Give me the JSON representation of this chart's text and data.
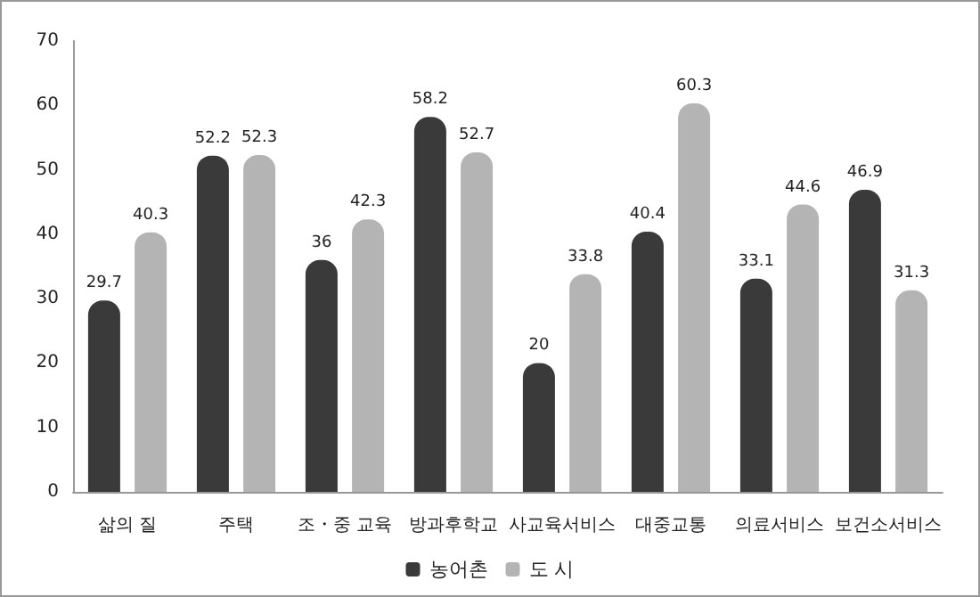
{
  "chart_data": {
    "type": "bar",
    "categories": [
      "삶의 질",
      "주택",
      "조・중 교육",
      "방과후학교",
      "사교육서비스",
      "대중교통",
      "의료서비스",
      "보건소서비스"
    ],
    "series": [
      {
        "name": "농어촌",
        "color": "#3a3a3a",
        "values": [
          29.7,
          52.2,
          36,
          58.2,
          20,
          40.4,
          33.1,
          46.9
        ]
      },
      {
        "name": "도 시",
        "color": "#b4b4b4",
        "values": [
          40.3,
          52.3,
          42.3,
          52.7,
          33.8,
          60.3,
          44.6,
          31.3
        ]
      }
    ],
    "ylim": [
      0,
      70
    ],
    "yticks": [
      0,
      10,
      20,
      30,
      40,
      50,
      60,
      70
    ],
    "data_labels": true,
    "grid": false,
    "legend": "bottom"
  }
}
